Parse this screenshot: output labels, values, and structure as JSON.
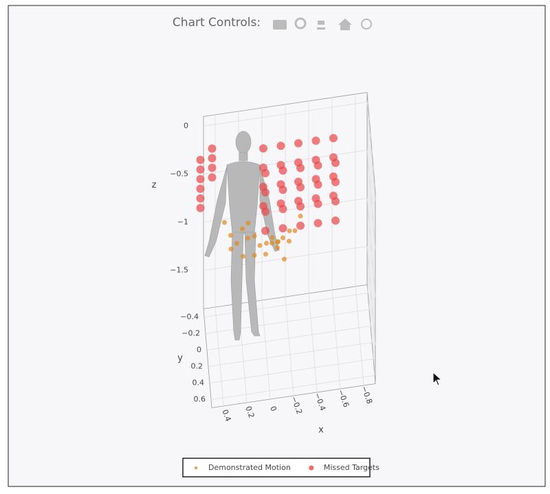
{
  "toolbar_label": "Chart Controls:",
  "chart_data": {
    "type": "scatter3d",
    "xlabel": "x",
    "ylabel": "y",
    "zlabel": "z",
    "xlim": [
      -0.9,
      0.5
    ],
    "ylim": [
      -0.5,
      0.7
    ],
    "zlim": [
      -1.9,
      0.1
    ],
    "xticks": [
      0.4,
      0.2,
      0,
      {
        "value": -0.2,
        "label": "−0.2"
      },
      {
        "value": -0.4,
        "label": "−0.4"
      },
      {
        "value": -0.6,
        "label": "−0.6"
      },
      {
        "value": -0.8,
        "label": "−0.8"
      }
    ],
    "yticks": [
      {
        "value": -0.4,
        "label": "−0.4"
      },
      {
        "value": -0.2,
        "label": "−0.2"
      },
      0,
      0.2,
      0.4,
      0.6
    ],
    "zticks": [
      0,
      {
        "value": -0.5,
        "label": "−0.5"
      },
      {
        "value": -1,
        "label": "−1"
      },
      {
        "value": -1.5,
        "label": "−1.5"
      }
    ],
    "grid": true,
    "legend": "bottom",
    "series": [
      {
        "name": "Demonstrated Motion",
        "color": "#e08a1e",
        "size": 3.5,
        "x": [
          0.35,
          0.3,
          0.25,
          0.2,
          0.15,
          0.1,
          0.05,
          0,
          -0.05,
          -0.1,
          -0.15,
          -0.2,
          -0.25,
          -0.3,
          0.3,
          0.2,
          0.1,
          0,
          -0.05,
          -0.1,
          -0.15,
          -0.2,
          0.15,
          -0.1
        ],
        "y": [
          0,
          0.05,
          0.1,
          0.05,
          0,
          0.1,
          0.05,
          0.15,
          0.1,
          0.05,
          0,
          0.1,
          0.05,
          0,
          0.1,
          0.15,
          0.1,
          0.05,
          0.15,
          0.1,
          0.2,
          0.05,
          0.05,
          0.15
        ],
        "z": [
          -0.6,
          -0.7,
          -0.75,
          -0.65,
          -0.8,
          -0.7,
          -0.85,
          -0.75,
          -0.8,
          -0.9,
          -0.85,
          -0.7,
          -0.75,
          -0.65,
          -0.8,
          -0.85,
          -0.9,
          -0.95,
          -0.7,
          -0.8,
          -0.9,
          -0.85,
          -0.6,
          -0.75
        ]
      },
      {
        "name": "Missed Targets",
        "color": "#e8474a",
        "size": 6,
        "x": [
          -0.6,
          -0.6,
          -0.6,
          -0.6,
          -0.45,
          -0.45,
          -0.45,
          -0.45,
          -0.3,
          -0.3,
          -0.3,
          -0.3,
          -0.15,
          -0.15,
          -0.15,
          -0.15,
          0,
          0,
          0,
          0,
          -0.6,
          -0.6,
          -0.6,
          -0.6,
          -0.45,
          -0.45,
          -0.45,
          -0.45,
          -0.3,
          -0.3,
          -0.3,
          -0.3,
          -0.15,
          -0.15,
          -0.15,
          -0.15,
          0,
          0,
          0,
          0,
          0.55,
          0.55,
          0.55,
          0.55,
          0.55,
          0.55,
          0.45,
          0.45,
          0.45,
          0.45
        ],
        "y": [
          -0.3,
          -0.3,
          -0.3,
          -0.3,
          -0.3,
          -0.3,
          -0.3,
          -0.3,
          -0.3,
          -0.3,
          -0.3,
          -0.3,
          -0.3,
          -0.3,
          -0.3,
          -0.3,
          -0.3,
          -0.3,
          -0.3,
          -0.3,
          0,
          0,
          0,
          0,
          0,
          0,
          0,
          0,
          0,
          0,
          0,
          0,
          0,
          0,
          0,
          0,
          0,
          0,
          0,
          0,
          -0.1,
          -0.1,
          -0.1,
          -0.1,
          -0.1,
          -0.1,
          -0.1,
          -0.1,
          -0.1,
          -0.1
        ],
        "z": [
          -0.15,
          -0.35,
          -0.55,
          -0.75,
          -0.15,
          -0.35,
          -0.55,
          -0.75,
          -0.15,
          -0.35,
          -0.55,
          -0.75,
          -0.15,
          -0.35,
          -0.55,
          -0.75,
          -0.15,
          -0.35,
          -0.55,
          -0.75,
          -0.15,
          -0.35,
          -0.55,
          -0.75,
          -0.15,
          -0.35,
          -0.55,
          -0.75,
          -0.15,
          -0.35,
          -0.55,
          -0.75,
          -0.15,
          -0.35,
          -0.55,
          -0.75,
          -0.15,
          -0.35,
          -0.55,
          -0.75,
          0,
          -0.1,
          -0.2,
          -0.3,
          -0.4,
          -0.5,
          0.1,
          0,
          -0.1,
          -0.2
        ]
      }
    ]
  }
}
